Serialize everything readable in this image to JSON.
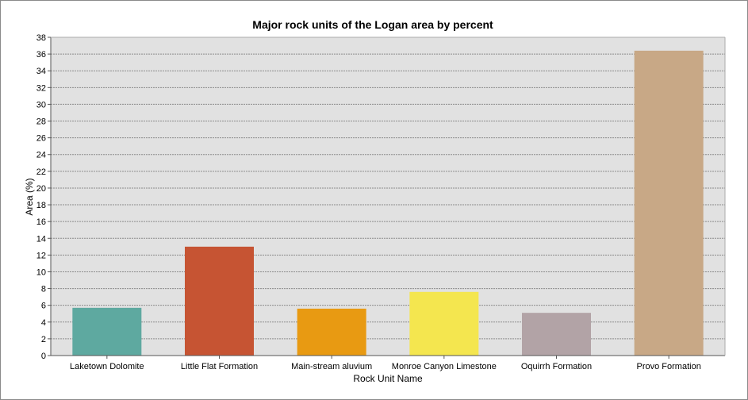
{
  "chart_data": {
    "type": "bar",
    "title": "Major rock units of the Logan area by percent",
    "xlabel": "Rock Unit Name",
    "ylabel": "Area (%)",
    "ylim": [
      0,
      38
    ],
    "ytick_step": 2,
    "grid": true,
    "categories": [
      "Laketown Dolomite",
      "Little Flat Formation",
      "Main-stream aluvium",
      "Monroe Canyon Limestone",
      "Oquirrh Formation",
      "Provo Formation"
    ],
    "values": [
      5.7,
      13.0,
      5.6,
      7.6,
      5.1,
      36.4
    ],
    "colors": [
      "#5ea9a0",
      "#c65433",
      "#e89a12",
      "#f4e64f",
      "#b2a3a6",
      "#c8a886"
    ],
    "plot_background": "#e1e1e1",
    "grid_color": "#8c8c8c"
  }
}
